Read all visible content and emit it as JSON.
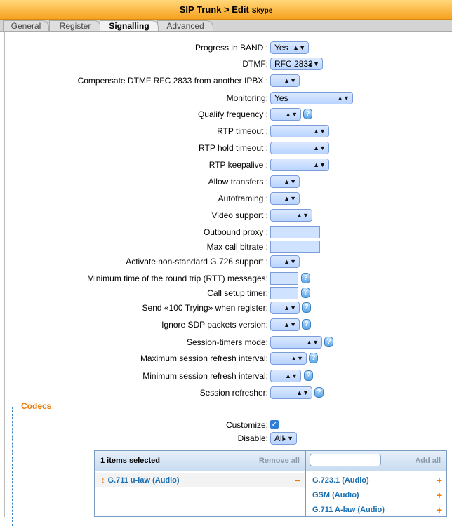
{
  "header": {
    "title": "SIP Trunk > Edit",
    "subtitle": "Skype"
  },
  "tabs": [
    "General",
    "Register",
    "Signalling",
    "Advanced"
  ],
  "fields": [
    {
      "label": "Progress in BAND :",
      "value": "Yes"
    },
    {
      "label": "DTMF:",
      "value": "RFC 2833"
    },
    {
      "label": "Compensate DTMF RFC 2833 from another IPBX :",
      "value": ""
    },
    {
      "label": "Monitoring:",
      "value": "Yes"
    },
    {
      "label": "Qualify frequency :",
      "value": ""
    },
    {
      "label": "RTP timeout :",
      "value": ""
    },
    {
      "label": "RTP hold timeout :",
      "value": ""
    },
    {
      "label": "RTP keepalive :",
      "value": ""
    },
    {
      "label": "Allow transfers :",
      "value": ""
    },
    {
      "label": "Autoframing :",
      "value": ""
    },
    {
      "label": "Video support :",
      "value": ""
    },
    {
      "label": "Outbound proxy :",
      "value": ""
    },
    {
      "label": "Max call bitrate :",
      "value": ""
    },
    {
      "label": "Activate non-standard G.726 support :",
      "value": ""
    },
    {
      "label": "Minimum time of the round trip (RTT) messages:",
      "value": ""
    },
    {
      "label": "Call setup timer:",
      "value": ""
    },
    {
      "label": "Send «100 Trying» when register:",
      "value": ""
    },
    {
      "label": "Ignore SDP packets version:",
      "value": ""
    },
    {
      "label": "Session-timers mode:",
      "value": ""
    },
    {
      "label": "Maximum session refresh interval:",
      "value": ""
    },
    {
      "label": "Minimum session refresh interval:",
      "value": ""
    },
    {
      "label": "Session refresher:",
      "value": ""
    }
  ],
  "codecs": {
    "legend": "Codecs",
    "customize_label": "Customize:",
    "disable_label": "Disable:",
    "disable_value": "All",
    "selected_header": "1 items selected",
    "remove_all": "Remove all",
    "add_all": "Add all",
    "search_placeholder": "",
    "selected": [
      "G.711 u-law (Audio)"
    ],
    "available": [
      "G.723.1 (Audio)",
      "GSM (Audio)",
      "G.711 A-law (Audio)"
    ]
  }
}
